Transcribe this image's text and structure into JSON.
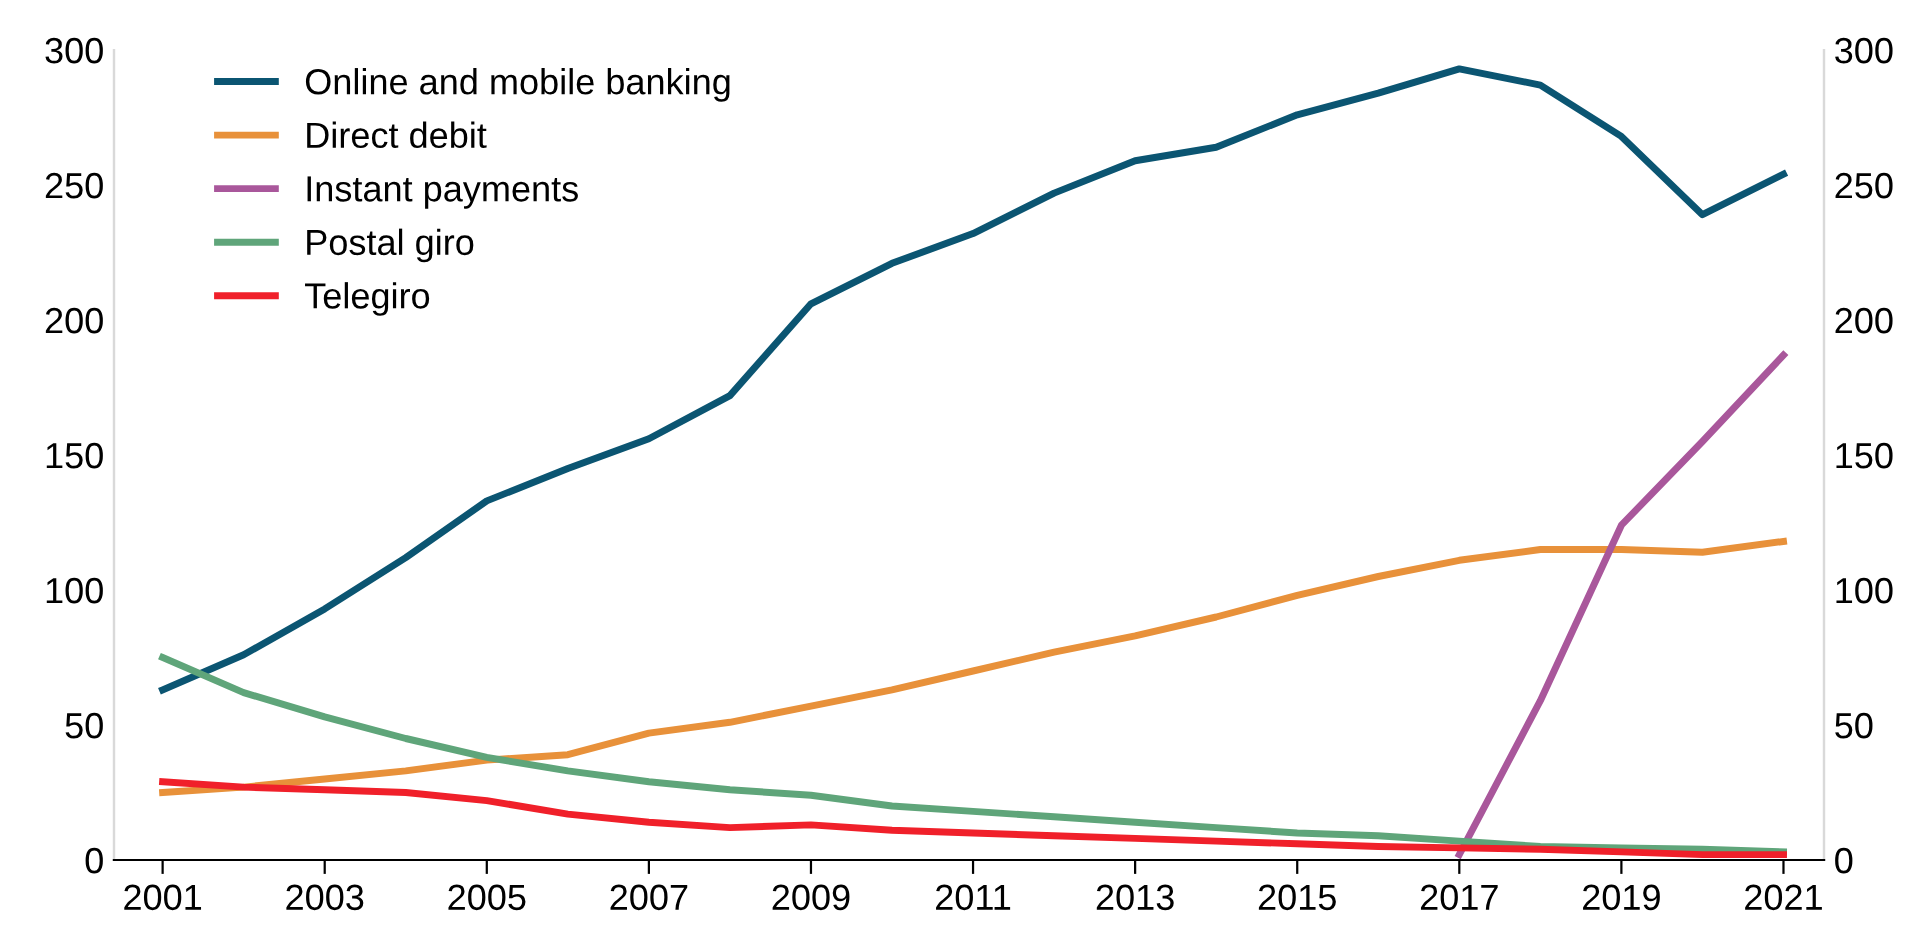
{
  "chart_data": {
    "type": "line",
    "x": [
      2001,
      2002,
      2003,
      2004,
      2005,
      2006,
      2007,
      2008,
      2009,
      2010,
      2011,
      2012,
      2013,
      2014,
      2015,
      2016,
      2017,
      2018,
      2019,
      2020,
      2021
    ],
    "series": [
      {
        "name": "Online and mobile banking",
        "color": "#0b5572",
        "values": [
          63,
          76,
          93,
          112,
          133,
          145,
          156,
          172,
          206,
          221,
          232,
          247,
          259,
          264,
          276,
          284,
          293,
          287,
          268,
          239,
          254
        ]
      },
      {
        "name": "Direct debit",
        "color": "#e8913a",
        "values": [
          25,
          27,
          30,
          33,
          37,
          39,
          47,
          51,
          57,
          63,
          70,
          77,
          83,
          90,
          98,
          105,
          111,
          115,
          115,
          114,
          118
        ]
      },
      {
        "name": "Instant payments",
        "color": "#a9579b",
        "values": [
          null,
          null,
          null,
          null,
          null,
          null,
          null,
          null,
          null,
          null,
          null,
          null,
          null,
          null,
          null,
          null,
          2,
          59,
          124,
          155,
          187
        ]
      },
      {
        "name": "Postal giro",
        "color": "#5fa57a",
        "values": [
          75,
          62,
          53,
          45,
          38,
          33,
          29,
          26,
          24,
          20,
          18,
          16,
          14,
          12,
          10,
          9,
          7,
          5,
          4.5,
          4,
          3
        ]
      },
      {
        "name": "Telegiro",
        "color": "#f0202a",
        "values": [
          29,
          27,
          26,
          25,
          22,
          17,
          14,
          12,
          13,
          11,
          10,
          9,
          8,
          7,
          6,
          5,
          4.5,
          4,
          3,
          2,
          2
        ]
      }
    ],
    "xlim": [
      2000.4,
      2021.5
    ],
    "xticks": [
      2001,
      2003,
      2005,
      2007,
      2009,
      2011,
      2013,
      2015,
      2017,
      2019,
      2021
    ],
    "ylim": [
      0,
      300
    ],
    "yticks": [
      0,
      50,
      100,
      150,
      200,
      250,
      300
    ],
    "y2lim": [
      0,
      300
    ],
    "y2ticks": [
      0,
      50,
      100,
      150,
      200,
      250,
      300
    ],
    "grid": false,
    "legend": "top left",
    "marker": "none",
    "line_style": "solid"
  }
}
